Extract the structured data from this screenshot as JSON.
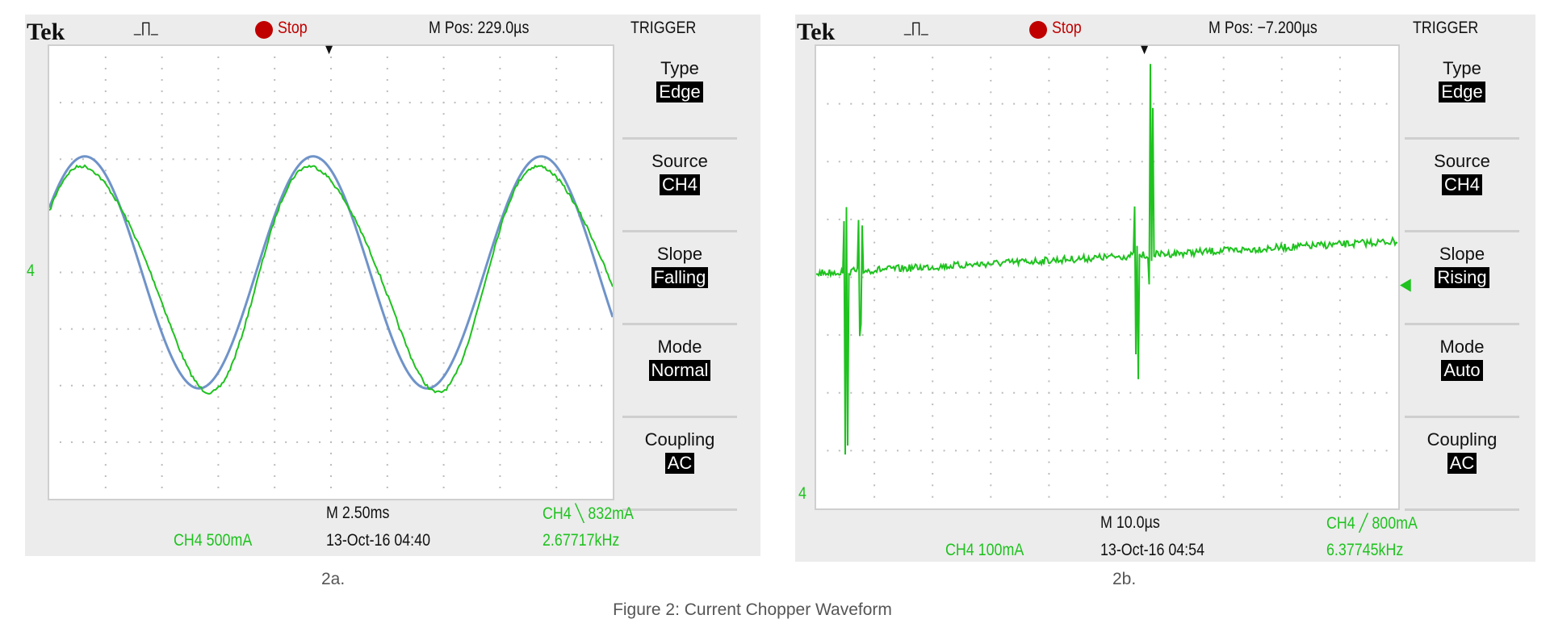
{
  "figure_caption": "Figure 2: Current Chopper Waveform",
  "panels": [
    {
      "label": "2a.",
      "brand": "Tek",
      "status": "Stop",
      "mpos": "M Pos: 229.0µs",
      "menu_title": "TRIGGER",
      "menu": [
        {
          "t": "Type",
          "v": "Edge"
        },
        {
          "t": "Source",
          "v": "CH4"
        },
        {
          "t": "Slope",
          "v": "Falling"
        },
        {
          "t": "Mode",
          "v": "Normal"
        },
        {
          "t": "Coupling",
          "v": "AC"
        }
      ],
      "timebase": "M 2.50ms",
      "channel": "CH4  500mA",
      "datetime": "13-Oct-16 04:40",
      "trigger": "CH4 ╲ 832mA",
      "frequency": "2.67717kHz",
      "ground_marker": "4"
    },
    {
      "label": "2b.",
      "brand": "Tek",
      "status": "Stop",
      "mpos": "M Pos: −7.200µs",
      "menu_title": "TRIGGER",
      "menu": [
        {
          "t": "Type",
          "v": "Edge"
        },
        {
          "t": "Source",
          "v": "CH4"
        },
        {
          "t": "Slope",
          "v": "Rising"
        },
        {
          "t": "Mode",
          "v": "Auto"
        },
        {
          "t": "Coupling",
          "v": "AC"
        }
      ],
      "timebase": "M 10.0µs",
      "channel": "CH4  100mA",
      "datetime": "13-Oct-16 04:54",
      "trigger": "CH4 ╱ 800mA",
      "frequency": "6.37745kHz",
      "ground_marker": "4"
    }
  ],
  "colors": {
    "trace": "#1fc21f",
    "reference": "#6f93c9",
    "stop": "#c00000"
  },
  "chart_data": [
    {
      "type": "line",
      "x_divisions": 10,
      "y_divisions": 8,
      "series": [
        {
          "shape": "sine",
          "amplitude_div": 2,
          "period_div": 4.05,
          "color": "#1fc21f"
        },
        {
          "shape": "ideal sine reference",
          "amplitude_div": 2.05,
          "color": "#6f93c9"
        }
      ]
    },
    {
      "type": "line",
      "x_divisions": 10,
      "y_divisions": 8,
      "series": [
        {
          "shape": "noisy baseline with switching spikes",
          "spike_positions_div": [
            0.5,
            0.75,
            5.5,
            5.75
          ],
          "color": "#1fc21f"
        }
      ]
    }
  ]
}
